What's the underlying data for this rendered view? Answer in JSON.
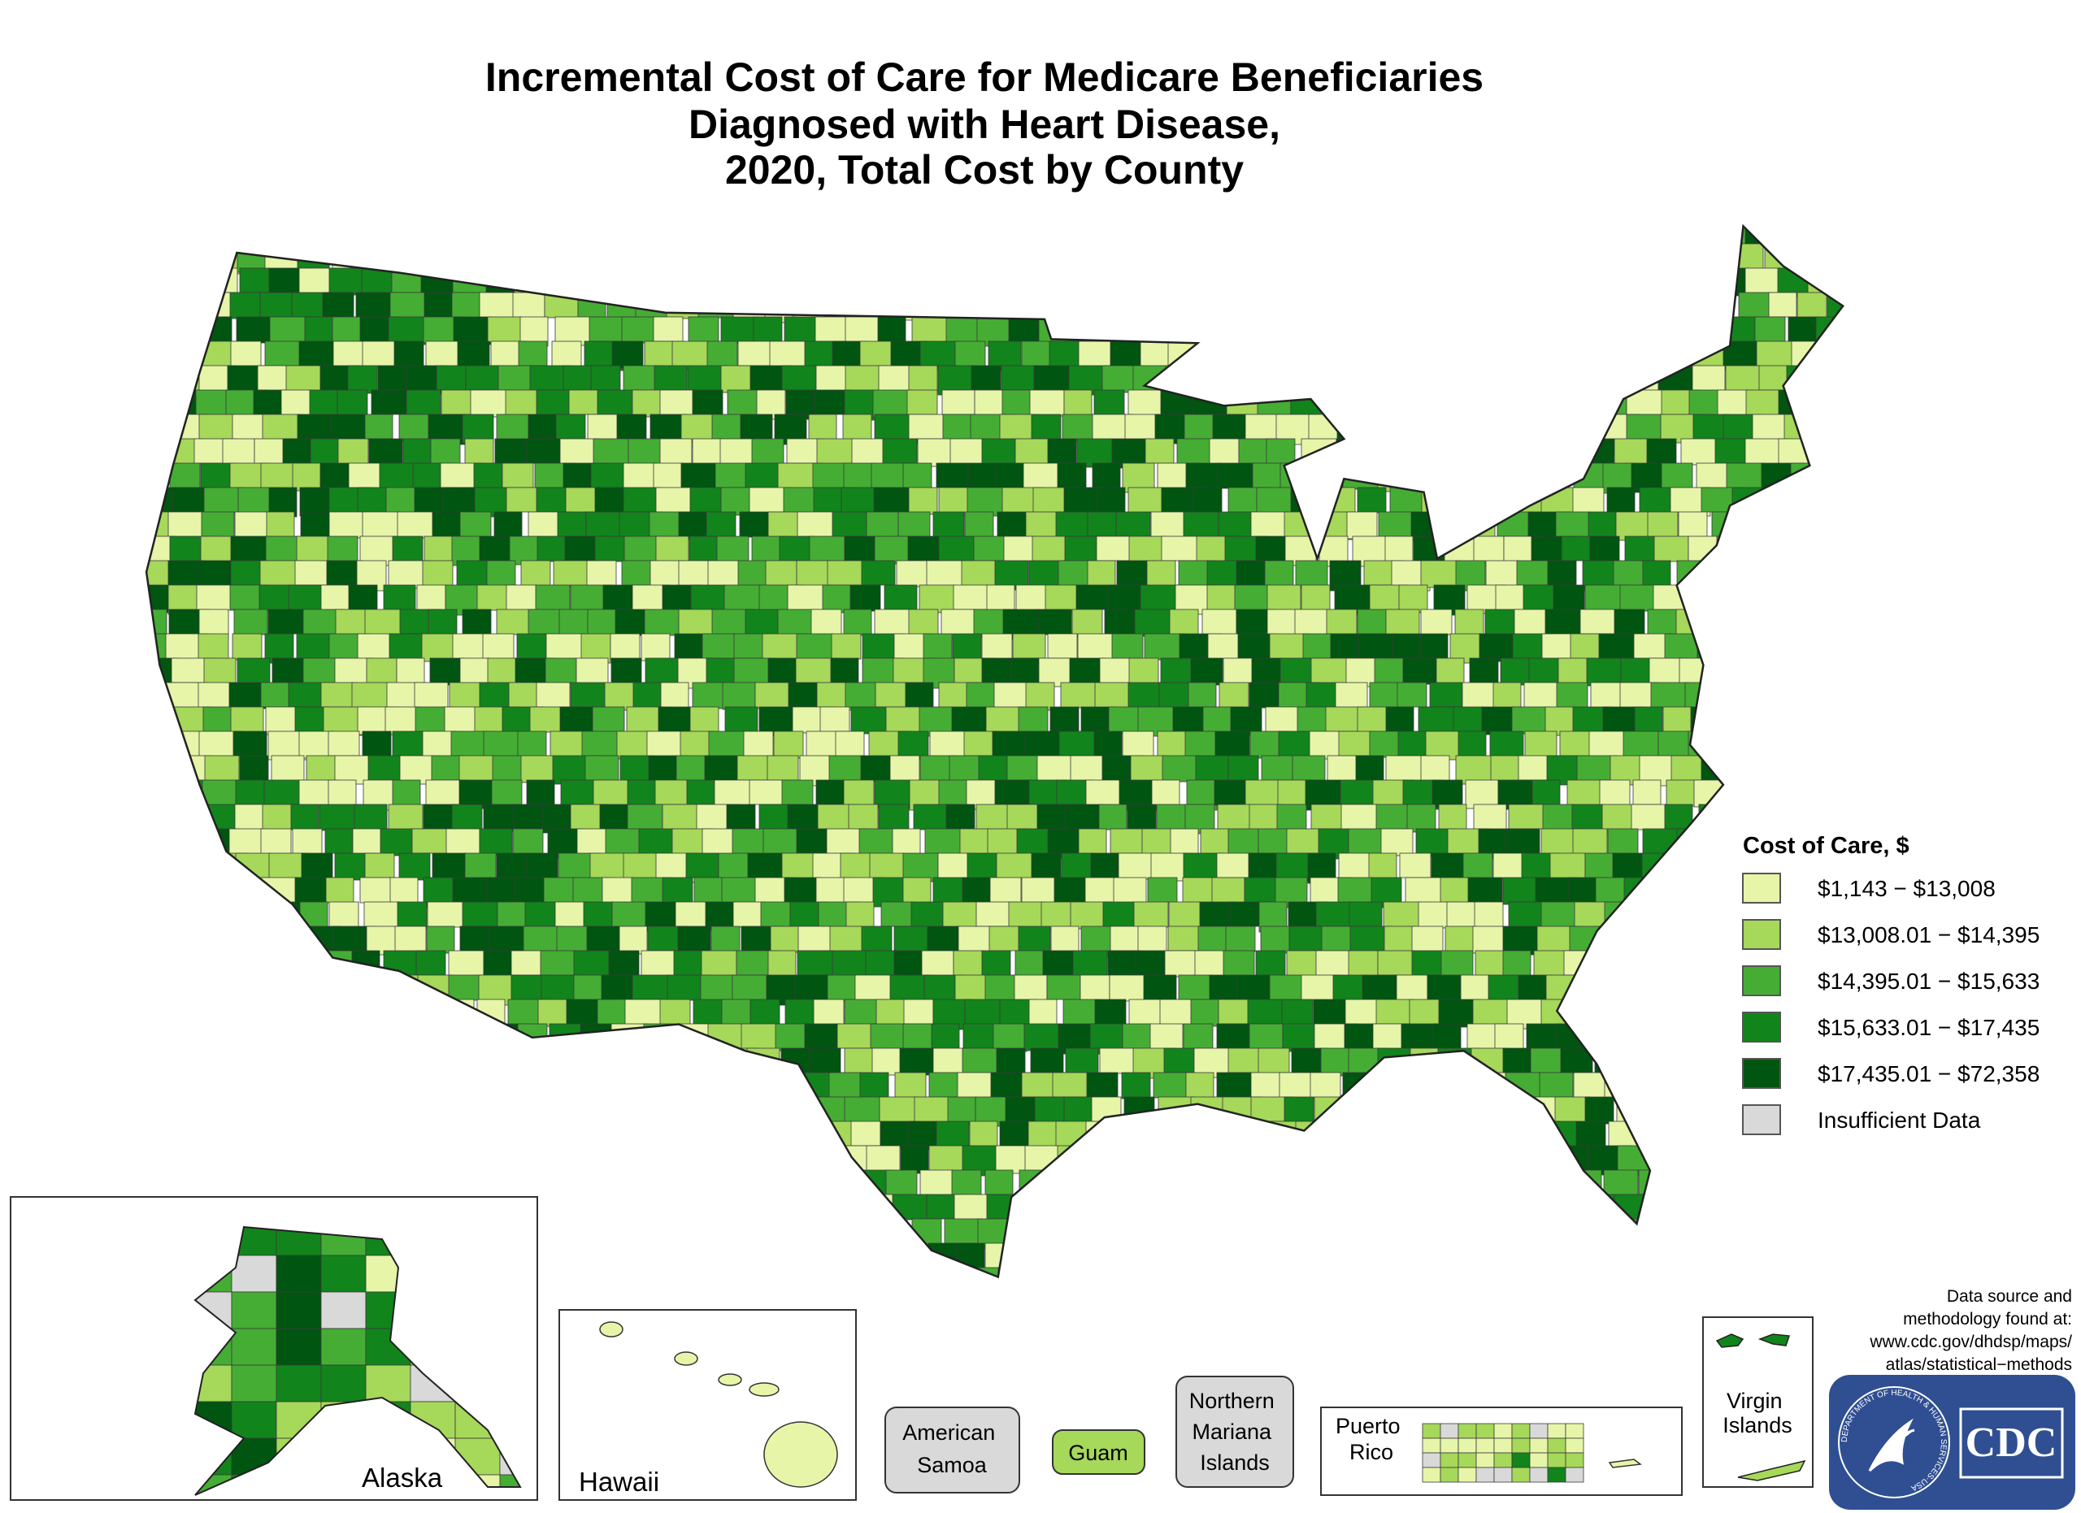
{
  "header": {
    "title": [
      "Incremental Cost of Care for Medicare Beneficiaries",
      "Diagnosed with Heart Disease,",
      "2020, Total Cost by County"
    ]
  },
  "legend": {
    "title": "Cost of Care, $",
    "items": [
      {
        "label": "$1,143 − $13,008",
        "color": "#e6f5a8"
      },
      {
        "label": "$13,008.01 − $14,395",
        "color": "#a6d85a"
      },
      {
        "label": "$14,395.01 − $15,633",
        "color": "#45ad34"
      },
      {
        "label": "$15,633.01 − $17,435",
        "color": "#12841c"
      },
      {
        "label": "$17,435.01 − $72,358",
        "color": "#005511"
      },
      {
        "label": "Insufficient Data",
        "color": "#d9d9d9"
      }
    ]
  },
  "insets": {
    "alaska": "Alaska",
    "hawaii": "Hawaii",
    "american_samoa": [
      "American",
      "Samoa"
    ],
    "guam": "Guam",
    "northern_mariana_islands": [
      "Northern",
      "Mariana",
      "Islands"
    ],
    "puerto_rico": [
      "Puerto",
      "Rico"
    ],
    "virgin_islands": [
      "Virgin",
      "Islands"
    ]
  },
  "footer": {
    "source": [
      "Data source and",
      "methodology found at:",
      "www.cdc.gov/dhdsp/maps/",
      "atlas/statistical−methods"
    ]
  },
  "logo": {
    "text": "CDC",
    "seal": "DEPARTMENT OF HEALTH & HUMAN SERVICES·USA"
  }
}
